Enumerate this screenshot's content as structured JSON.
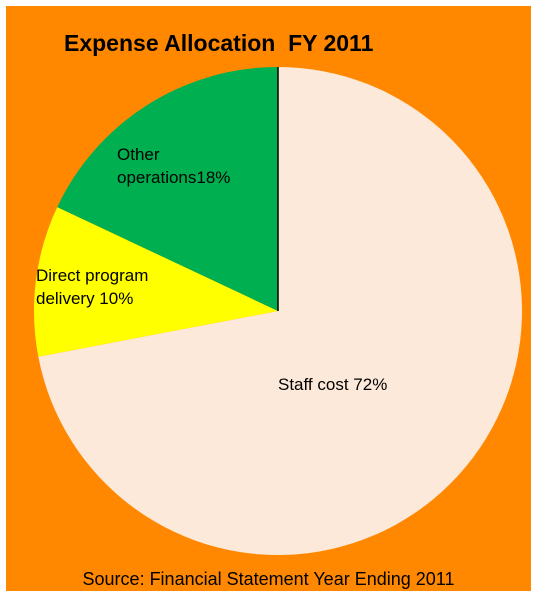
{
  "chart_data": {
    "type": "pie",
    "title": "Expense Allocation  FY 2011",
    "source": "Source: Financial Statement Year Ending 2011",
    "slices": [
      {
        "label_lines": [
          "Staff cost 72%"
        ],
        "value": 72,
        "color": "#fde9d9"
      },
      {
        "label_lines": [
          "Direct program",
          "delivery 10%"
        ],
        "value": 10,
        "color": "#ffff00"
      },
      {
        "label_lines": [
          "Other",
          "operations18%"
        ],
        "value": 18,
        "color": "#00b050"
      }
    ],
    "legend": "none",
    "start_angle": "12 o'clock",
    "direction": "clockwise"
  },
  "colors": {
    "background": "#ff8800",
    "outline": "#000000"
  }
}
